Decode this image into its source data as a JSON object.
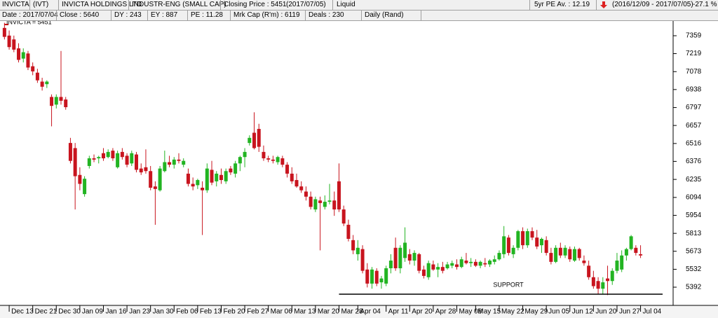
{
  "header": {
    "row1": [
      "INVICTA",
      "(IVT)",
      "INVICTA HOLDINGS LTD",
      "INDUSTR-ENG (SMALL CAP)",
      "Closing Price : 5451",
      "(2017/07/05)",
      "Liquid",
      "5yr PE Av. : 12.19",
      "(2016/12/09 - 2017/07/05)",
      "-27.1 %"
    ],
    "row2": [
      "Date : 2017/07/04",
      "Close : 5640",
      "DY : 243",
      "EY : 887",
      "PE : 11.28",
      "Mrk Cap (R'm) : 6119",
      "Deals : 230",
      "Daily (Rand)"
    ]
  },
  "chart_data": {
    "type": "candlestick",
    "legend_label": "INVICTA = 5451",
    "legend_color": "#cc0000",
    "up_color": "#22b422",
    "down_color": "#c8141e",
    "ylim": [
      5255,
      7474
    ],
    "yticks": [
      7359,
      7219,
      7078,
      6938,
      6797,
      6657,
      6516,
      6376,
      6235,
      6094,
      5954,
      5813,
      5673,
      5532,
      5392
    ],
    "grid": false,
    "support": {
      "label": "SUPPORT",
      "value": 5337,
      "color": "#0000cc"
    },
    "categories": [
      null,
      "Dec 13",
      null,
      null,
      null,
      null,
      "Dec 21",
      null,
      null,
      null,
      null,
      "Dec 30",
      null,
      null,
      null,
      null,
      "Jan 09",
      null,
      null,
      null,
      null,
      "Jan 16",
      null,
      null,
      null,
      null,
      "Jan 23",
      null,
      null,
      null,
      null,
      "Jan 30",
      null,
      null,
      null,
      null,
      "Feb 06",
      null,
      null,
      null,
      null,
      "Feb 13",
      null,
      null,
      null,
      null,
      "Feb 20",
      null,
      null,
      null,
      null,
      "Feb 27",
      null,
      null,
      null,
      null,
      "Mar 06",
      null,
      null,
      null,
      null,
      "Mar 13",
      null,
      null,
      null,
      null,
      "Mar 20",
      null,
      null,
      null,
      null,
      "Mar 28",
      null,
      null,
      null,
      "Apr 04",
      null,
      null,
      null,
      null,
      null,
      "Apr 11",
      null,
      null,
      null,
      null,
      "Apr 20",
      null,
      null,
      null,
      null,
      "Apr 28",
      null,
      null,
      null,
      null,
      "May 08",
      null,
      null,
      null,
      "May 15",
      null,
      null,
      null,
      null,
      "May 22",
      null,
      null,
      null,
      null,
      "May 29",
      null,
      null,
      null,
      null,
      "Jun 05",
      null,
      null,
      null,
      null,
      "Jun 12",
      null,
      null,
      null,
      null,
      "Jun 20",
      null,
      null,
      null,
      null,
      "Jun 27",
      null,
      null,
      null,
      null,
      "Jul 04"
    ],
    "open": [
      7420,
      7360,
      7330,
      7260,
      7180,
      7220,
      7120,
      7070,
      7000,
      6980,
      6880,
      6820,
      6880,
      6860,
      6520,
      6480,
      6270,
      6120,
      6340,
      6400,
      6400,
      6440,
      6410,
      6460,
      6330,
      6450,
      6420,
      6360,
      6430,
      6320,
      6330,
      6300,
      6180,
      6150,
      6300,
      6370,
      6350,
      6390,
      6350,
      6280,
      6200,
      6190,
      6170,
      6150,
      6310,
      6220,
      6270,
      6220,
      6320,
      6280,
      6360,
      6410,
      6520,
      6600,
      6630,
      6450,
      6400,
      6390,
      6370,
      6400,
      6350,
      6280,
      6230,
      6180,
      6140,
      6100,
      6000,
      6070,
      6020,
      6060,
      6070,
      6220,
      6000,
      5880,
      5760,
      5650,
      5690,
      5530,
      5420,
      5520,
      5430,
      5420,
      5540,
      5700,
      5540,
      5620,
      5650,
      5600,
      5650,
      5530,
      5470,
      5570,
      5530,
      5550,
      5540,
      5560,
      5570,
      5550,
      5600,
      5580,
      5590,
      5560,
      5580,
      5570,
      5590,
      5610,
      5650,
      5780,
      5650,
      5700,
      5830,
      5720,
      5830,
      5780,
      5720,
      5760,
      5660,
      5590,
      5700,
      5640,
      5690,
      5600,
      5690,
      5600,
      5560,
      5470,
      5440,
      5380,
      5460,
      5440,
      5520,
      5530,
      5640,
      5690,
      5700,
      5650
    ],
    "high": [
      7460,
      7400,
      7360,
      7300,
      7260,
      7240,
      7150,
      7100,
      7030,
      7010,
      6900,
      6900,
      7240,
      6880,
      6560,
      6520,
      6330,
      6260,
      6420,
      6430,
      6420,
      6480,
      6470,
      6480,
      6460,
      6480,
      6440,
      6460,
      6450,
      6360,
      6470,
      6340,
      6220,
      6340,
      6460,
      6420,
      6410,
      6440,
      6400,
      6320,
      6250,
      6240,
      6220,
      6360,
      6380,
      6300,
      6320,
      6320,
      6340,
      6380,
      6420,
      6480,
      6580,
      6760,
      6670,
      6500,
      6420,
      6420,
      6420,
      6420,
      6370,
      6330,
      6280,
      6220,
      6180,
      6140,
      6100,
      6100,
      6110,
      6200,
      6140,
      6360,
      6030,
      5920,
      5800,
      5760,
      5720,
      5580,
      5550,
      5540,
      5480,
      5560,
      5650,
      5780,
      5720,
      5860,
      5690,
      5680,
      5660,
      5560,
      5600,
      5600,
      5580,
      5590,
      5590,
      5600,
      5610,
      5630,
      5660,
      5620,
      5610,
      5600,
      5620,
      5610,
      5640,
      5680,
      5870,
      5800,
      5720,
      5840,
      5860,
      5850,
      5860,
      5840,
      5780,
      5790,
      5700,
      5720,
      5740,
      5720,
      5710,
      5710,
      5700,
      5640,
      5600,
      5520,
      5470,
      5470,
      5560,
      5540,
      5660,
      5680,
      5700,
      5800,
      5720,
      5720
    ],
    "low": [
      7330,
      7250,
      7230,
      7150,
      7150,
      7090,
      7050,
      6990,
      6930,
      6950,
      6650,
      6790,
      6820,
      6780,
      6360,
      6000,
      6150,
      6100,
      6320,
      6370,
      6360,
      6380,
      6400,
      6380,
      6320,
      6390,
      6330,
      6340,
      6290,
      6270,
      6280,
      6150,
      5880,
      6140,
      6290,
      6330,
      6320,
      6360,
      6330,
      6180,
      6150,
      6160,
      5800,
      6130,
      6190,
      6180,
      6200,
      6200,
      6270,
      6250,
      6300,
      6330,
      6500,
      6470,
      6450,
      6380,
      6370,
      6360,
      6350,
      6330,
      6250,
      6200,
      6170,
      6130,
      6070,
      6000,
      5980,
      5680,
      6000,
      6040,
      5950,
      5980,
      5870,
      5750,
      5650,
      5600,
      5500,
      5390,
      5380,
      5400,
      5380,
      5400,
      5500,
      5520,
      5500,
      5590,
      5570,
      5560,
      5500,
      5460,
      5450,
      5520,
      5470,
      5500,
      5530,
      5540,
      5530,
      5540,
      5570,
      5550,
      5550,
      5540,
      5550,
      5550,
      5570,
      5600,
      5620,
      5640,
      5620,
      5680,
      5690,
      5700,
      5760,
      5690,
      5660,
      5640,
      5570,
      5580,
      5620,
      5620,
      5590,
      5590,
      5600,
      5560,
      5450,
      5380,
      5340,
      5340,
      5330,
      5410,
      5500,
      5510,
      5600,
      5680,
      5640,
      5620
    ],
    "close": [
      7350,
      7270,
      7250,
      7170,
      7230,
      7110,
      7080,
      7010,
      6960,
      7000,
      6810,
      6880,
      6850,
      6800,
      6380,
      6260,
      6200,
      6240,
      6400,
      6390,
      6410,
      6400,
      6450,
      6400,
      6440,
      6410,
      6350,
      6440,
      6310,
      6290,
      6300,
      6170,
      6160,
      6320,
      6370,
      6350,
      6390,
      6380,
      6380,
      6200,
      6180,
      6230,
      6150,
      6320,
      6210,
      6280,
      6230,
      6300,
      6290,
      6360,
      6410,
      6450,
      6560,
      6480,
      6490,
      6400,
      6390,
      6380,
      6410,
      6350,
      6280,
      6220,
      6180,
      6150,
      6100,
      6020,
      6080,
      6050,
      6060,
      6070,
      6000,
      6000,
      5890,
      5770,
      5680,
      5700,
      5520,
      5420,
      5530,
      5420,
      5460,
      5540,
      5600,
      5540,
      5700,
      5740,
      5600,
      5660,
      5520,
      5480,
      5580,
      5530,
      5550,
      5520,
      5570,
      5580,
      5550,
      5610,
      5580,
      5590,
      5560,
      5590,
      5570,
      5600,
      5610,
      5660,
      5790,
      5660,
      5700,
      5830,
      5720,
      5830,
      5780,
      5710,
      5770,
      5660,
      5590,
      5700,
      5640,
      5700,
      5610,
      5690,
      5620,
      5580,
      5470,
      5400,
      5380,
      5430,
      5440,
      5520,
      5600,
      5640,
      5690,
      5790,
      5660,
      5640
    ]
  }
}
